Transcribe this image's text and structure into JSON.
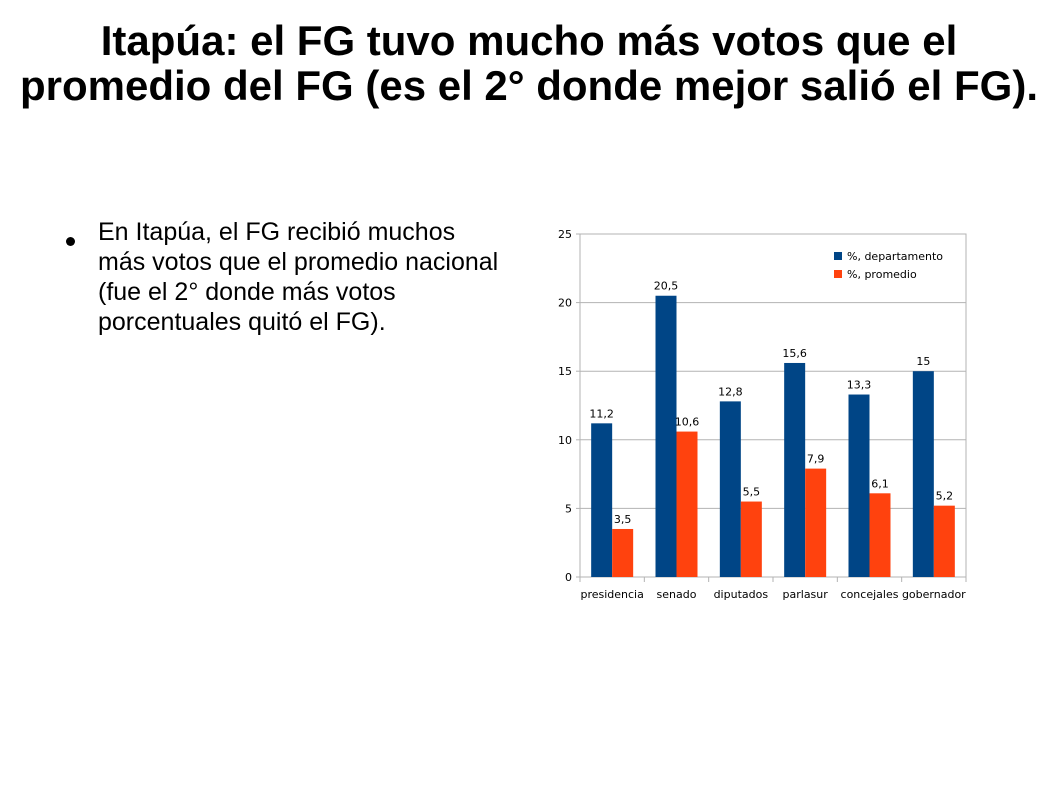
{
  "slide": {
    "title": "Itapúa: el FG tuvo mucho más votos que el promedio del FG (es el 2° donde mejor salió el FG).",
    "bullet": "En Itapúa, el FG recibió muchos más votos que el promedio nacional (fue el 2° donde más votos porcentuales quitó el FG)."
  },
  "chart_data": {
    "type": "bar",
    "title": "",
    "xlabel": "",
    "ylabel": "",
    "categories": [
      "presidencia",
      "senado",
      "diputados",
      "parlasur",
      "concejales",
      "gobernador"
    ],
    "series": [
      {
        "name": "%, departamento",
        "values": [
          11.2,
          20.5,
          12.8,
          15.6,
          13.3,
          15
        ],
        "labels": [
          "11,2",
          "20,5",
          "12,8",
          "15,6",
          "13,3",
          "15"
        ],
        "color": "#004586"
      },
      {
        "name": "%, promedio",
        "values": [
          3.5,
          10.6,
          5.5,
          7.9,
          6.1,
          5.2
        ],
        "labels": [
          "3,5",
          "10,6",
          "5,5",
          "7,9",
          "6,1",
          "5,2"
        ],
        "color": "#ff420e"
      }
    ],
    "ylim": [
      0,
      25
    ],
    "yticks": [
      0,
      5,
      10,
      15,
      20,
      25
    ],
    "grid": true,
    "legend": "top-right"
  }
}
